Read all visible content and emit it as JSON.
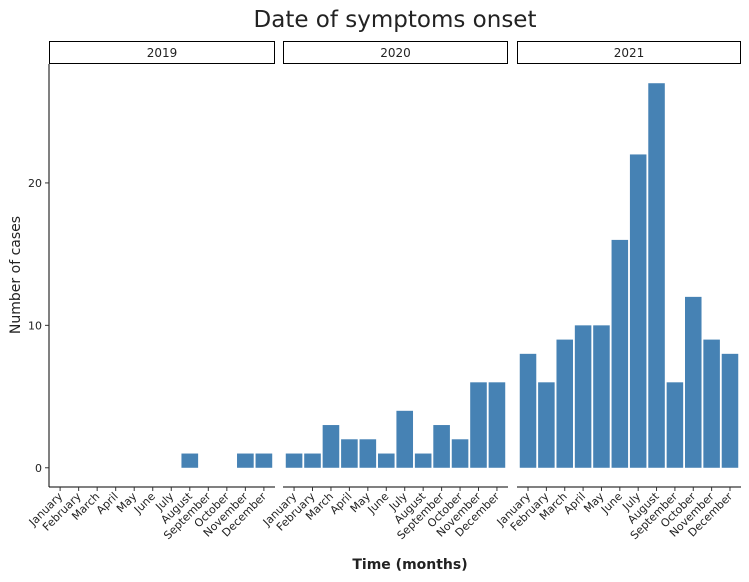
{
  "chart_data": {
    "type": "bar",
    "title": "Date of symptoms onset",
    "x_label": "Time (months)",
    "y_label": "Number of cases",
    "color": "#4682b4",
    "ylim": [
      -1.35,
      28.35
    ],
    "yticks": [
      0,
      10,
      20
    ],
    "facets": [
      {
        "label": "2019",
        "categories": [
          "January",
          "February",
          "March",
          "April",
          "May",
          "June",
          "July",
          "August",
          "September",
          "October",
          "November",
          "December"
        ],
        "values": [
          0,
          0,
          0,
          0,
          0,
          0,
          0,
          1,
          0,
          0,
          1,
          1
        ]
      },
      {
        "label": "2020",
        "categories": [
          "January",
          "February",
          "March",
          "April",
          "May",
          "June",
          "July",
          "August",
          "September",
          "October",
          "November",
          "December"
        ],
        "values": [
          1,
          1,
          3,
          2,
          2,
          1,
          4,
          1,
          3,
          2,
          6,
          6
        ]
      },
      {
        "label": "2021",
        "categories": [
          "January",
          "February",
          "March",
          "April",
          "May",
          "June",
          "July",
          "August",
          "September",
          "October",
          "November",
          "December"
        ],
        "values": [
          8,
          6,
          9,
          10,
          10,
          16,
          22,
          27,
          6,
          12,
          9,
          8
        ]
      }
    ]
  }
}
